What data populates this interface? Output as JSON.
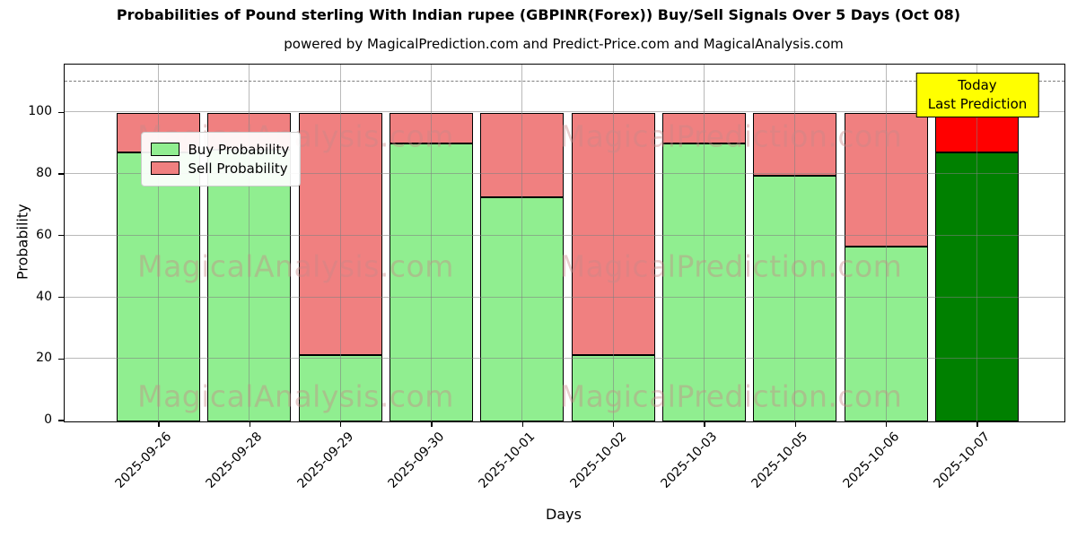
{
  "title": "Probabilities of Pound sterling With Indian rupee (GBPINR(Forex)) Buy/Sell Signals Over 5 Days (Oct 08)",
  "subtitle": "powered by MagicalPrediction.com and Predict-Price.com and MagicalAnalysis.com",
  "watermarks": {
    "left": "MagicalAnalysis.com",
    "right": "MagicalPrediction.com"
  },
  "annotation": {
    "line1": "Today",
    "line2": "Last Prediction",
    "background": "#ffff00"
  },
  "legend": [
    {
      "label": "Buy Probability",
      "color": "#90EE90"
    },
    {
      "label": "Sell Probability",
      "color": "#F08080"
    }
  ],
  "colors": {
    "buy": "#90EE90",
    "sell": "#F08080",
    "buy_today": "#008000",
    "sell_today": "#FF0000",
    "bar_edge": "#000000",
    "dashed_line": "#7f7f7f",
    "grid": "#b0b0b0"
  },
  "chart_data": {
    "type": "bar",
    "stacked": true,
    "title": "Probabilities of Pound sterling With Indian rupee (GBPINR(Forex)) Buy/Sell Signals Over 5 Days (Oct 08)",
    "xlabel": "Days",
    "ylabel": "Probability",
    "categories": [
      "2025-09-26",
      "2025-09-28",
      "2025-09-29",
      "2025-09-30",
      "2025-10-01",
      "2025-10-02",
      "2025-10-03",
      "2025-10-05",
      "2025-10-06",
      "2025-10-07"
    ],
    "series": [
      {
        "name": "Buy Probability",
        "values": [
          87,
          88,
          21.5,
          90,
          72.5,
          21.5,
          90,
          79.5,
          56.5,
          87
        ]
      },
      {
        "name": "Sell Probability",
        "values": [
          13,
          12,
          78.5,
          10,
          27.5,
          78.5,
          10,
          20.5,
          43.5,
          13
        ]
      }
    ],
    "yticks": [
      0,
      20,
      40,
      60,
      80,
      100
    ],
    "ylim": [
      0,
      115.5
    ],
    "dashed_line_y": 110,
    "grid": true,
    "legend_position": "upper left"
  }
}
